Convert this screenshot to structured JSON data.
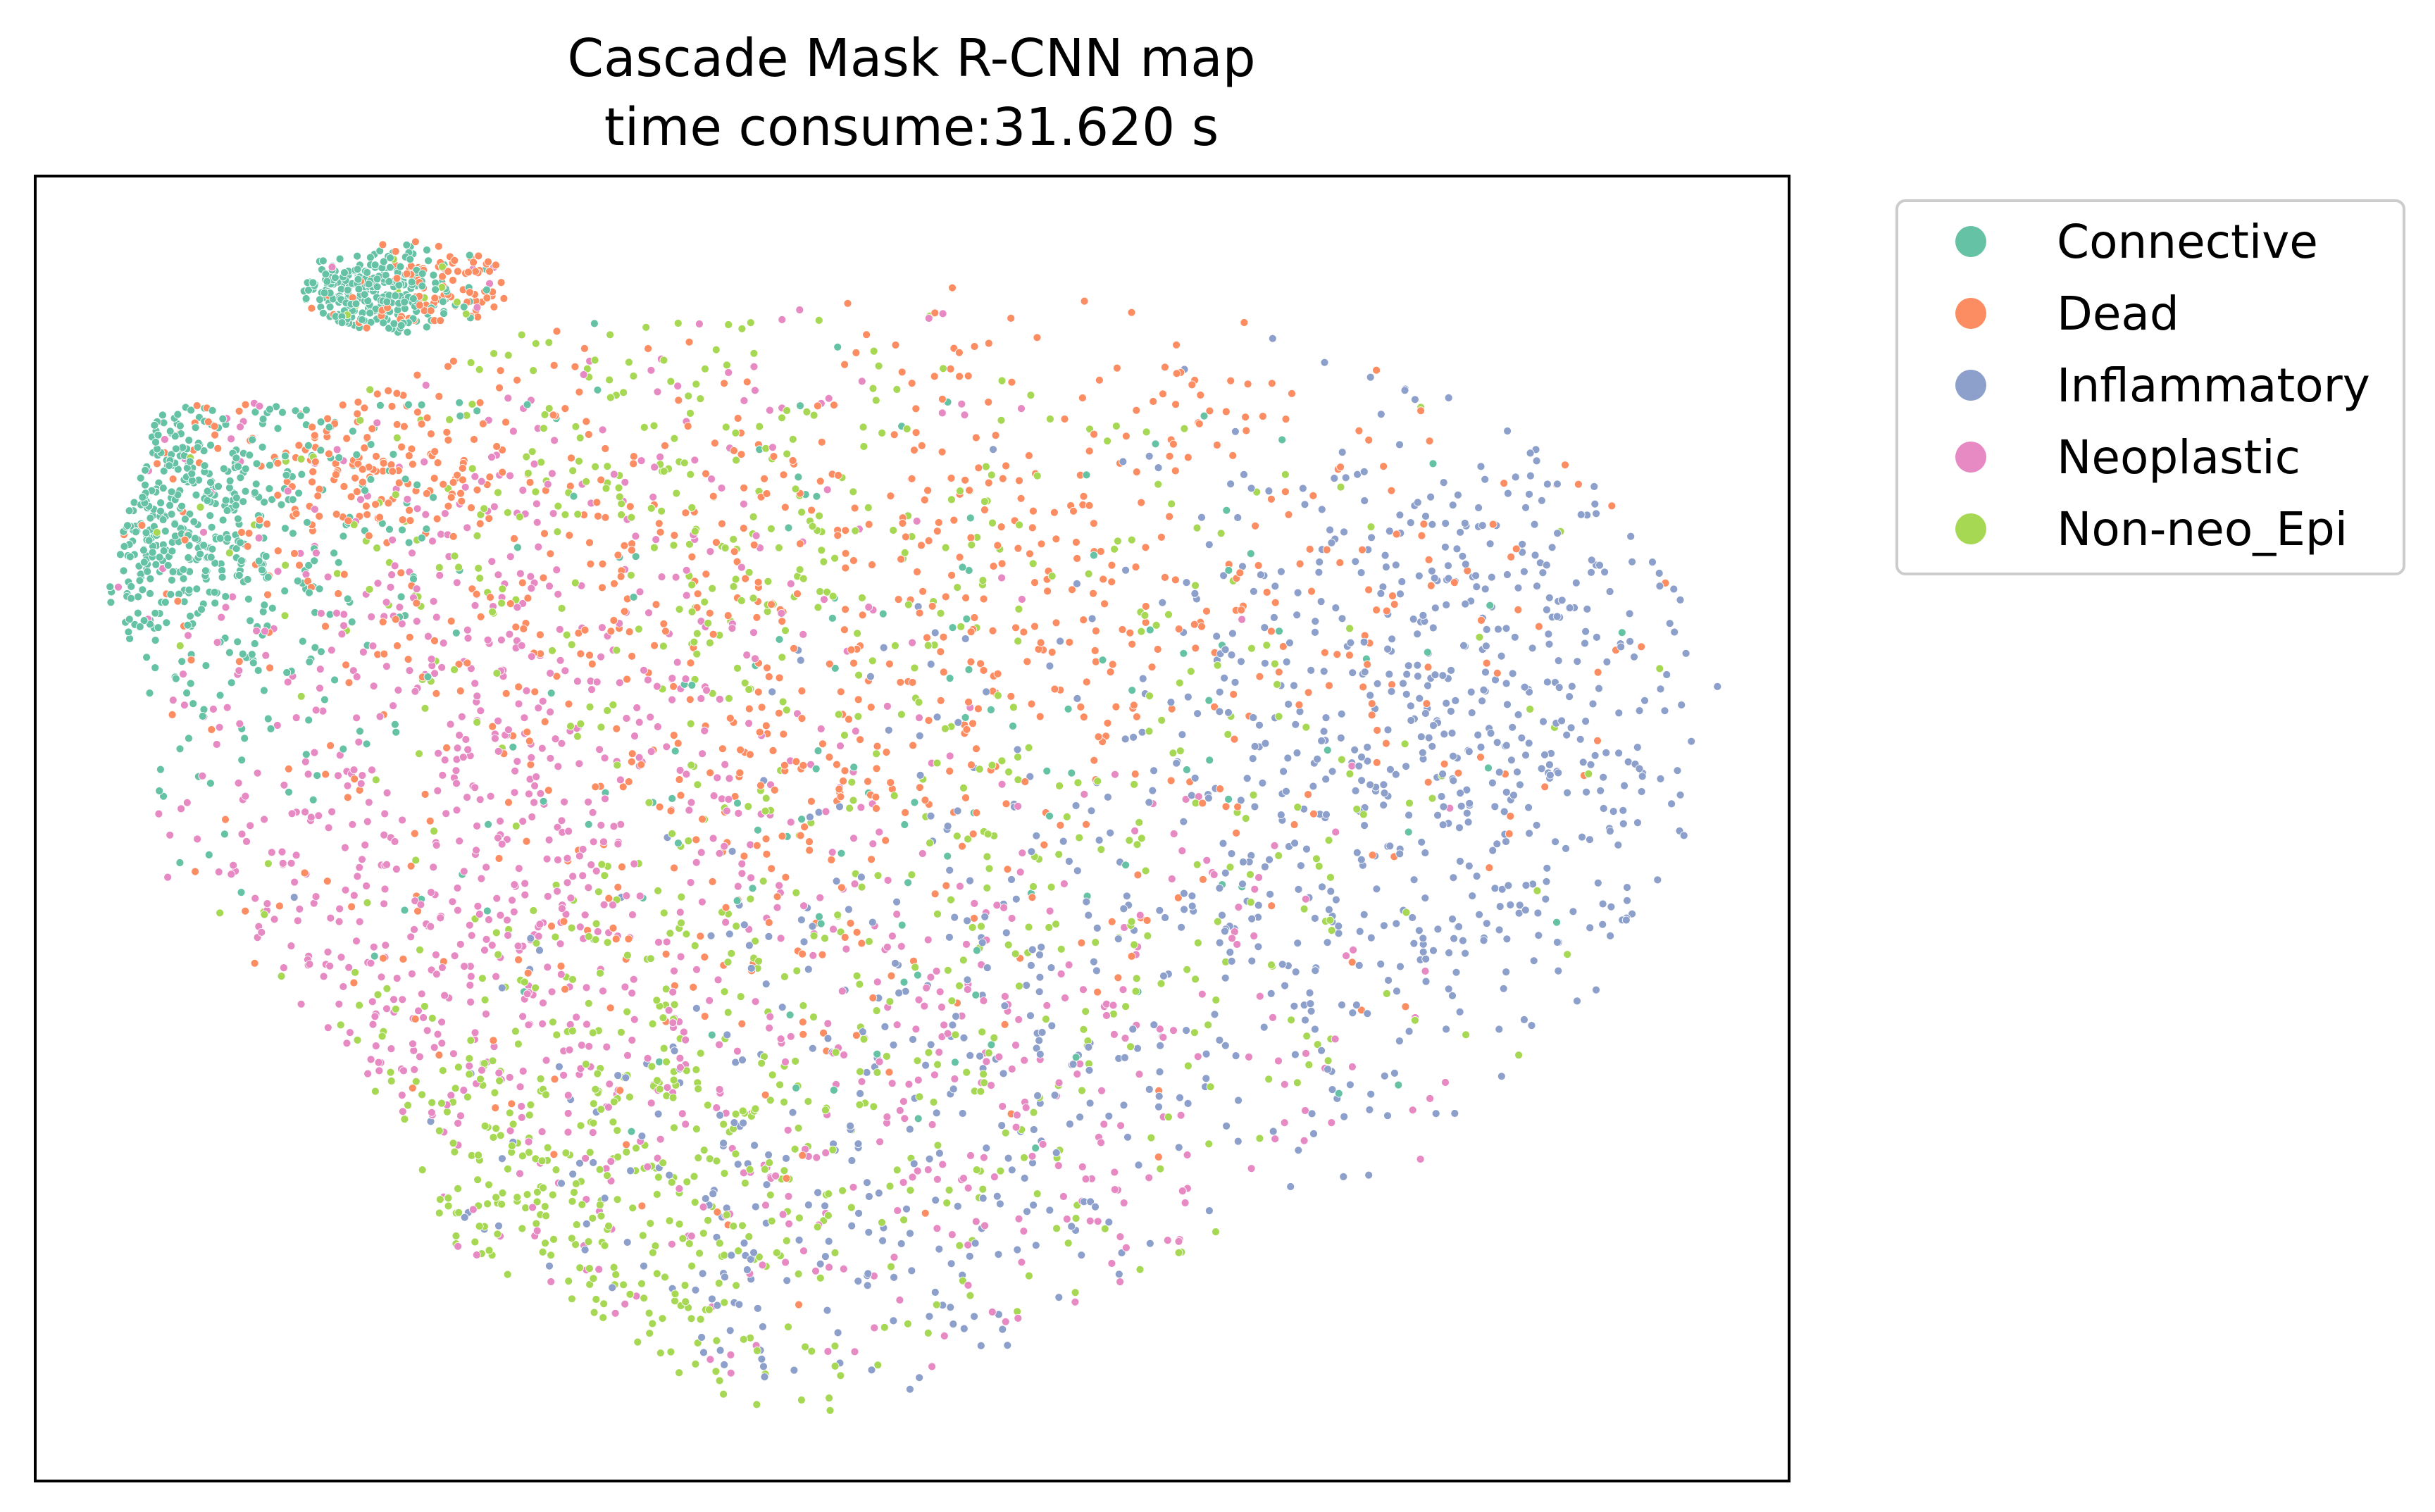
{
  "chart_data": {
    "type": "scatter",
    "title": "Cascade Mask R-CNN map",
    "subtitle": "time consume:31.620 s",
    "xlabel": "",
    "ylabel": "",
    "xticks": [],
    "yticks": [],
    "xlim": [
      0,
      100
    ],
    "ylim": [
      0,
      100
    ],
    "grid": false,
    "legend_position": "outside-upper-right",
    "series": [
      {
        "name": "Connective",
        "color": "#66c2a5"
      },
      {
        "name": "Dead",
        "color": "#fc8d62"
      },
      {
        "name": "Inflammatory",
        "color": "#8da0cb"
      },
      {
        "name": "Neoplastic",
        "color": "#e78ac3"
      },
      {
        "name": "Non-neo_Epi",
        "color": "#a6d854"
      }
    ],
    "regions": [
      {
        "series": "Connective",
        "cx": 7.5,
        "cy": 76,
        "sx": 3.5,
        "sy": 6,
        "weight": 1.5
      },
      {
        "series": "Connective",
        "cx": 19,
        "cy": 91,
        "sx": 2.5,
        "sy": 2,
        "weight": 1.0
      },
      {
        "series": "Connective",
        "cx": 12,
        "cy": 70,
        "sx": 6,
        "sy": 10,
        "weight": 0.8
      },
      {
        "series": "Connective",
        "cx": 50,
        "cy": 60,
        "sx": 22,
        "sy": 18,
        "weight": 0.5
      },
      {
        "series": "Dead",
        "cx": 40,
        "cy": 60,
        "sx": 14,
        "sy": 16,
        "weight": 1.5
      },
      {
        "series": "Dead",
        "cx": 62,
        "cy": 72,
        "sx": 16,
        "sy": 14,
        "weight": 1.1
      },
      {
        "series": "Dead",
        "cx": 18,
        "cy": 78,
        "sx": 6,
        "sy": 5,
        "weight": 0.6
      },
      {
        "series": "Dead",
        "cx": 25,
        "cy": 92,
        "sx": 3,
        "sy": 2,
        "weight": 0.4
      },
      {
        "series": "Inflammatory",
        "cx": 82,
        "cy": 60,
        "sx": 9,
        "sy": 14,
        "weight": 2.0
      },
      {
        "series": "Inflammatory",
        "cx": 64,
        "cy": 40,
        "sx": 14,
        "sy": 14,
        "weight": 1.0
      },
      {
        "series": "Inflammatory",
        "cx": 45,
        "cy": 20,
        "sx": 10,
        "sy": 10,
        "weight": 0.6
      },
      {
        "series": "Neoplastic",
        "cx": 24,
        "cy": 45,
        "sx": 10,
        "sy": 14,
        "weight": 1.8
      },
      {
        "series": "Neoplastic",
        "cx": 50,
        "cy": 30,
        "sx": 16,
        "sy": 14,
        "weight": 1.2
      },
      {
        "series": "Neoplastic",
        "cx": 30,
        "cy": 70,
        "sx": 12,
        "sy": 14,
        "weight": 0.8
      },
      {
        "series": "Non-neo_Epi",
        "cx": 32,
        "cy": 22,
        "sx": 10,
        "sy": 10,
        "weight": 1.6
      },
      {
        "series": "Non-neo_Epi",
        "cx": 55,
        "cy": 45,
        "sx": 18,
        "sy": 18,
        "weight": 1.2
      },
      {
        "series": "Non-neo_Epi",
        "cx": 35,
        "cy": 75,
        "sx": 12,
        "sy": 10,
        "weight": 0.9
      }
    ],
    "point_count": 5200
  }
}
